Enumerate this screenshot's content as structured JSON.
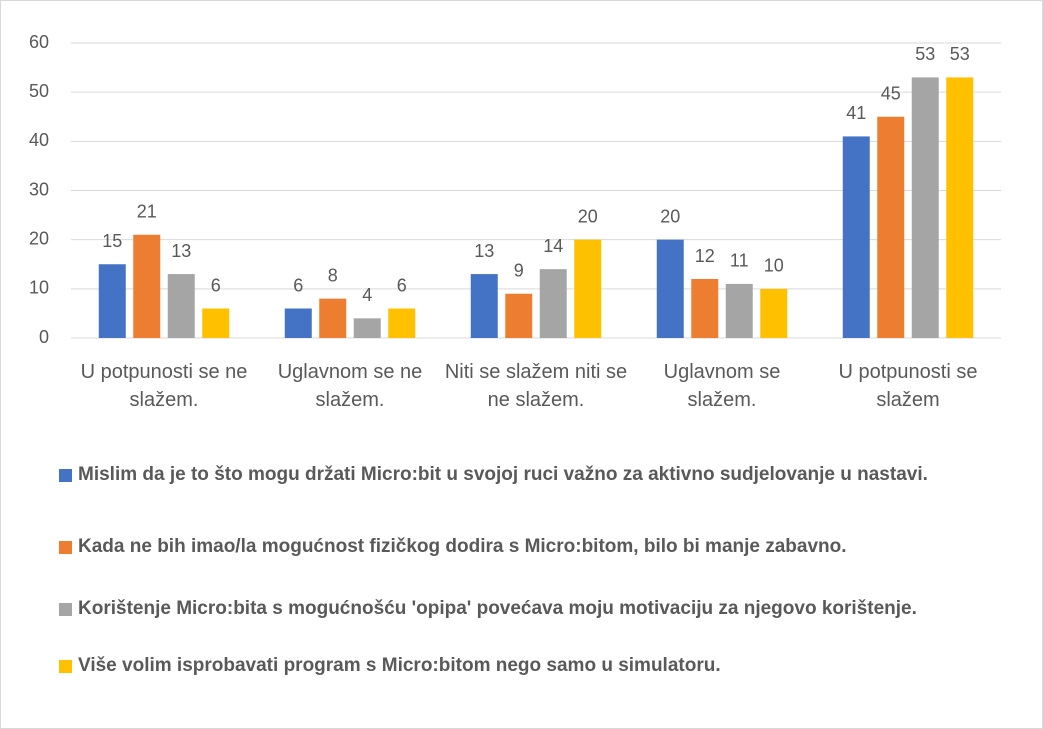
{
  "chart_data": {
    "type": "bar",
    "categories": [
      "U potpunosti se ne slažem.",
      "Uglavnom se ne slažem.",
      "Niti se slažem niti se ne slažem.",
      "Uglavnom se slažem.",
      "U potpunosti se slažem"
    ],
    "series": [
      {
        "name": "Mislim da je to što mogu držati Micro:bit u svojoj ruci važno za aktivno sudjelovanje u nastavi.",
        "color": "#4472c4",
        "values": [
          15,
          6,
          13,
          20,
          41
        ]
      },
      {
        "name": "Kada ne bih imao/la mogućnost fizičkog dodira s Micro:bitom, bilo bi manje zabavno.",
        "color": "#ed7d31",
        "values": [
          21,
          8,
          9,
          12,
          45
        ]
      },
      {
        "name": "Korištenje Micro:bita s mogućnošću 'opipa' povećava moju motivaciju za njegovo korištenje.",
        "color": "#a5a5a5",
        "values": [
          13,
          4,
          14,
          11,
          53
        ]
      },
      {
        "name": "Više volim isprobavati program s Micro:bitom nego samo u simulatoru.",
        "color": "#ffc000",
        "values": [
          6,
          6,
          20,
          10,
          53
        ]
      }
    ],
    "ylim": [
      0,
      60
    ],
    "yticks": [
      0,
      10,
      20,
      30,
      40,
      50,
      60
    ],
    "grid": true,
    "legend": "bottom"
  }
}
